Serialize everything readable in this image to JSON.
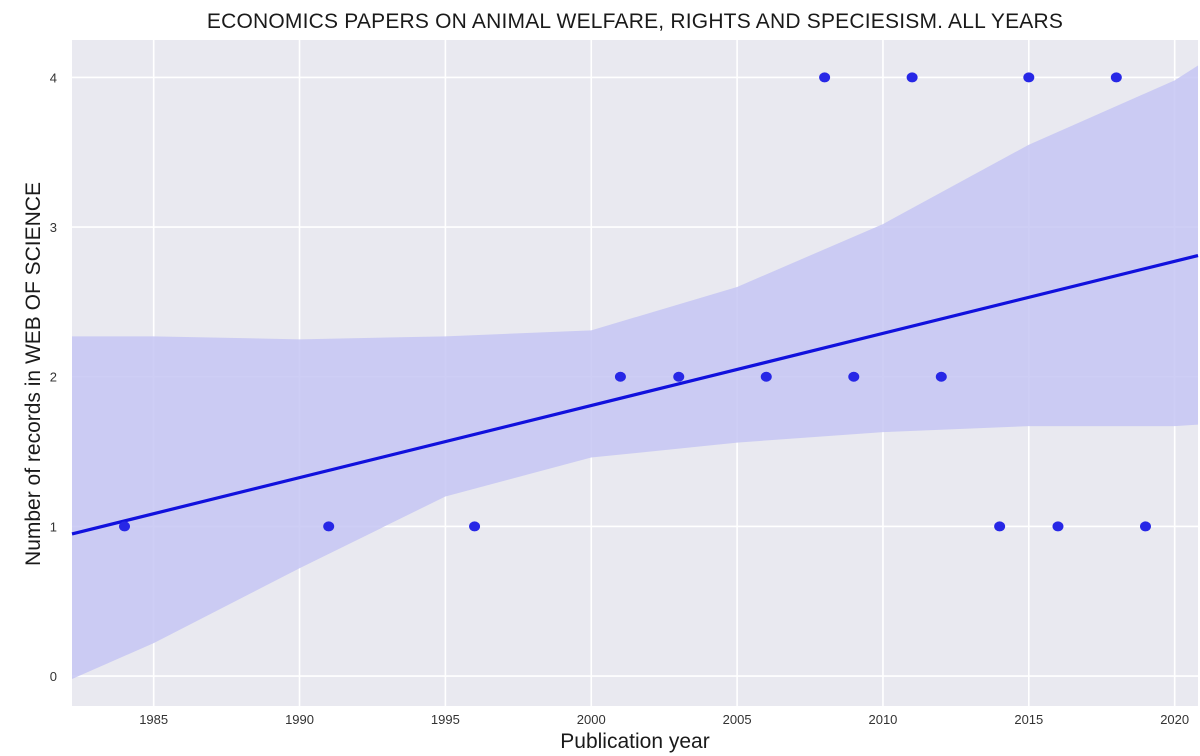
{
  "chart_data": {
    "type": "scatter",
    "title": "ECONOMICS PAPERS ON ANIMAL WELFARE, RIGHTS AND SPECIESISM. ALL YEARS",
    "xlabel": "Publication year",
    "ylabel": "Number of records in WEB OF SCIENCE",
    "xlim": [
      1982.2,
      2020.8
    ],
    "ylim": [
      -0.2,
      4.25
    ],
    "x_ticks": [
      "1985",
      "1990",
      "1995",
      "2000",
      "2005",
      "2010",
      "2015",
      "2020"
    ],
    "y_ticks": [
      "0",
      "1",
      "2",
      "3",
      "4"
    ],
    "grid": true,
    "points": {
      "x": [
        1984,
        1991,
        1996,
        2001,
        2003,
        2006,
        2008,
        2009,
        2011,
        2012,
        2014,
        2015,
        2016,
        2018,
        2019
      ],
      "y": [
        1,
        1,
        1,
        2,
        2,
        2,
        4,
        2,
        4,
        2,
        1,
        4,
        1,
        4,
        1
      ]
    },
    "regression_line": {
      "x": [
        1982.2,
        2020.8
      ],
      "y": [
        0.95,
        2.81
      ]
    },
    "confidence_band": {
      "x": [
        1982.2,
        1985,
        1990,
        1995,
        2000,
        2005,
        2010,
        2015,
        2020,
        2020.8
      ],
      "upper": [
        2.27,
        2.27,
        2.25,
        2.27,
        2.31,
        2.6,
        3.02,
        3.55,
        3.98,
        4.08
      ],
      "lower": [
        -0.02,
        0.22,
        0.72,
        1.2,
        1.46,
        1.56,
        1.63,
        1.67,
        1.67,
        1.68
      ]
    },
    "colors": {
      "points": "#2727e6",
      "line": "#1111dd",
      "band": "#c5c5f3",
      "plot_background": "#e9e9f0",
      "grid": "#ffffff"
    }
  }
}
